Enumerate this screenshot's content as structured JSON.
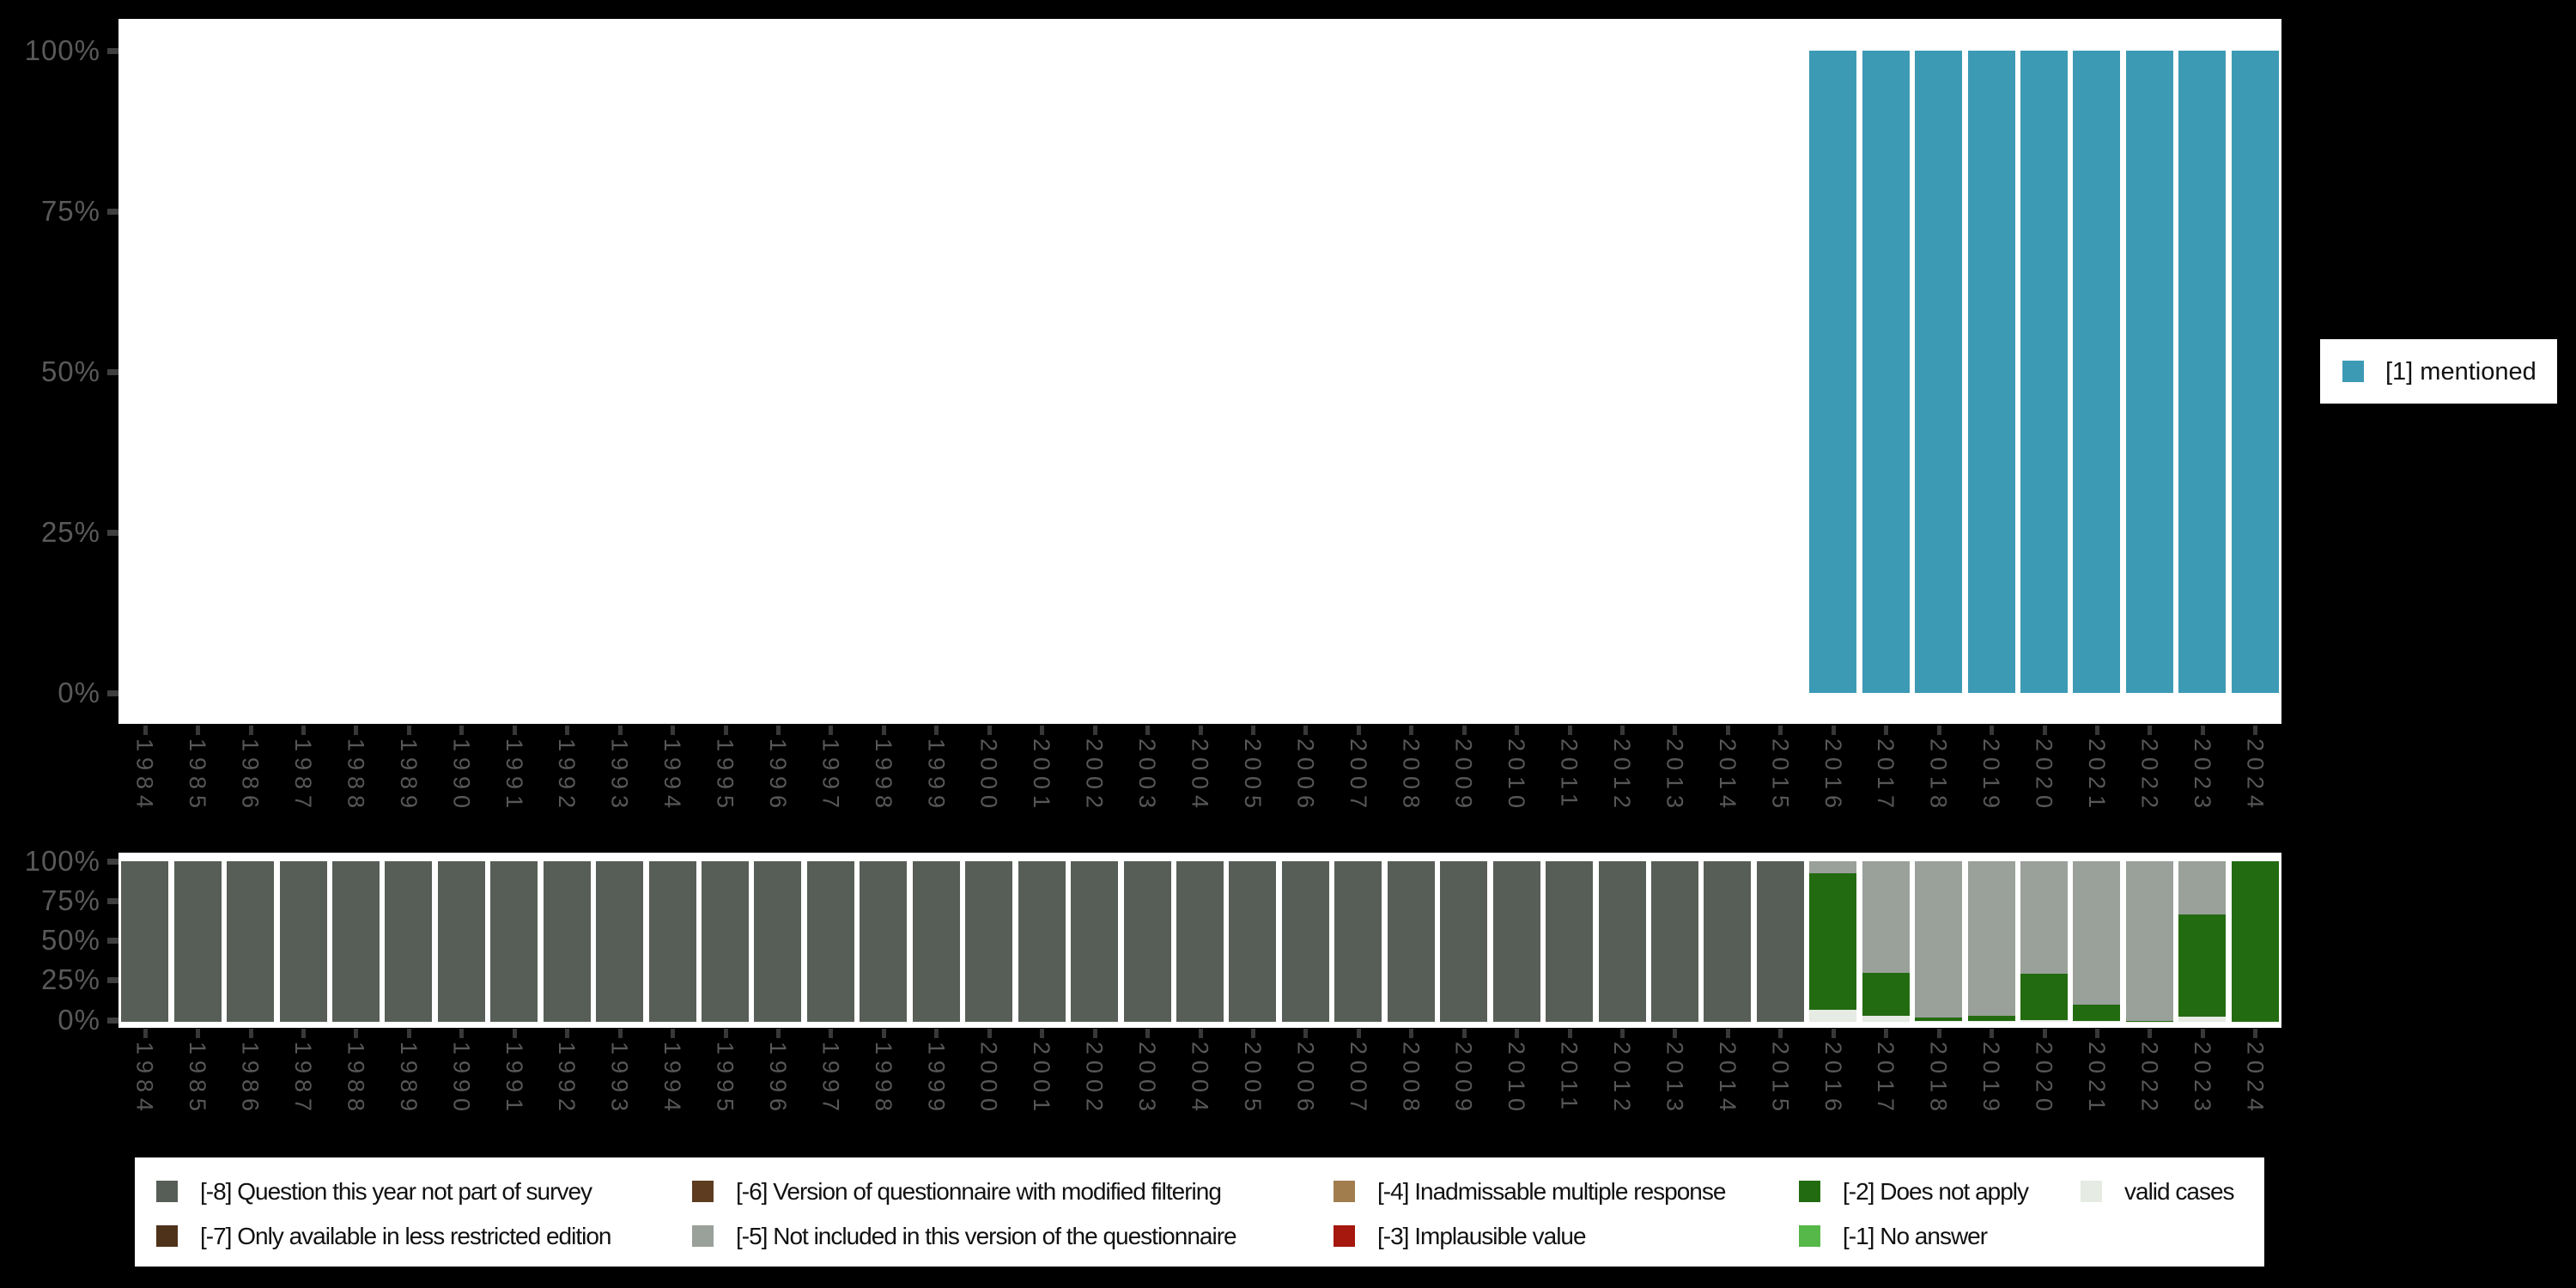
{
  "colors": {
    "background": "#000000",
    "plot_bg": "#ffffff",
    "y_axis_text": "#595959",
    "x_axis_text": "#575757",
    "tick_mark": "#3f3f3f",
    "legend_text": "#111111",
    "mentioned": "#3d9ab5",
    "m8": "#575e57",
    "m7": "#4f321a",
    "m6": "#5e3c20",
    "m5": "#9aa09a",
    "m4": "#a17d4e",
    "m3": "#a6170e",
    "m2": "#236b11",
    "m1": "#56b848",
    "valid": "#e6ebe3"
  },
  "y_axis_ticks": [
    "100%",
    "75%",
    "50%",
    "25%",
    "0%"
  ],
  "top_chart": {
    "legend_label": "[1] mentioned"
  },
  "bottom_legend": {
    "items": [
      {
        "key": "m8",
        "label": "[-8] Question this year not part of survey",
        "col": 0,
        "row": 0
      },
      {
        "key": "m7",
        "label": "[-7] Only available in less restricted edition",
        "col": 0,
        "row": 1
      },
      {
        "key": "m6",
        "label": "[-6] Version of questionnaire with modified filtering",
        "col": 1,
        "row": 0
      },
      {
        "key": "m5",
        "label": "[-5] Not included in this version of the questionnaire",
        "col": 1,
        "row": 1
      },
      {
        "key": "m4",
        "label": "[-4] Inadmissable multiple response",
        "col": 2,
        "row": 0
      },
      {
        "key": "m3",
        "label": "[-3] Implausible value",
        "col": 2,
        "row": 1
      },
      {
        "key": "m2",
        "label": "[-2] Does not apply",
        "col": 3,
        "row": 0
      },
      {
        "key": "m1",
        "label": "[-1] No answer",
        "col": 3,
        "row": 1
      },
      {
        "key": "valid",
        "label": "valid cases",
        "col": 4,
        "row": 0
      }
    ]
  },
  "chart_data": [
    {
      "type": "bar",
      "title": "",
      "xlabel": "",
      "ylabel": "",
      "ylim": [
        0,
        100
      ],
      "grid": false,
      "legend_position": "right",
      "categories": [
        "1984",
        "1985",
        "1986",
        "1987",
        "1988",
        "1989",
        "1990",
        "1991",
        "1992",
        "1993",
        "1994",
        "1995",
        "1996",
        "1997",
        "1998",
        "1999",
        "2000",
        "2001",
        "2002",
        "2003",
        "2004",
        "2005",
        "2006",
        "2007",
        "2008",
        "2009",
        "2010",
        "2011",
        "2012",
        "2013",
        "2014",
        "2015",
        "2016",
        "2017",
        "2018",
        "2019",
        "2020",
        "2021",
        "2022",
        "2023",
        "2024"
      ],
      "series": [
        {
          "key": "mentioned",
          "name": "[1] mentioned",
          "values": [
            null,
            null,
            null,
            null,
            null,
            null,
            null,
            null,
            null,
            null,
            null,
            null,
            null,
            null,
            null,
            null,
            null,
            null,
            null,
            null,
            null,
            null,
            null,
            null,
            null,
            null,
            null,
            null,
            null,
            null,
            null,
            null,
            100,
            100,
            100,
            100,
            100,
            100,
            100,
            100,
            100
          ]
        }
      ]
    },
    {
      "type": "bar",
      "stacked": true,
      "title": "",
      "xlabel": "",
      "ylabel": "",
      "ylim": [
        0,
        100
      ],
      "grid": false,
      "legend_position": "bottom",
      "categories": [
        "1984",
        "1985",
        "1986",
        "1987",
        "1988",
        "1989",
        "1990",
        "1991",
        "1992",
        "1993",
        "1994",
        "1995",
        "1996",
        "1997",
        "1998",
        "1999",
        "2000",
        "2001",
        "2002",
        "2003",
        "2004",
        "2005",
        "2006",
        "2007",
        "2008",
        "2009",
        "2010",
        "2011",
        "2012",
        "2013",
        "2014",
        "2015",
        "2016",
        "2017",
        "2018",
        "2019",
        "2020",
        "2021",
        "2022",
        "2023",
        "2024"
      ],
      "series": [
        {
          "key": "m8",
          "name": "[-8] Question this year not part of survey",
          "values": [
            100,
            100,
            100,
            100,
            100,
            100,
            100,
            100,
            100,
            100,
            100,
            100,
            100,
            100,
            100,
            100,
            100,
            100,
            100,
            100,
            100,
            100,
            100,
            100,
            100,
            100,
            100,
            100,
            100,
            100,
            100,
            100,
            0,
            0,
            0,
            0,
            0,
            0,
            0,
            0,
            0
          ]
        },
        {
          "key": "m7",
          "name": "[-7] Only available in less restricted edition",
          "values": [
            0,
            0,
            0,
            0,
            0,
            0,
            0,
            0,
            0,
            0,
            0,
            0,
            0,
            0,
            0,
            0,
            0,
            0,
            0,
            0,
            0,
            0,
            0,
            0,
            0,
            0,
            0,
            0,
            0,
            0,
            0,
            0,
            0,
            0,
            0,
            0,
            0,
            0,
            0,
            0,
            0
          ]
        },
        {
          "key": "m6",
          "name": "[-6] Version of questionnaire with modified filtering",
          "values": [
            0,
            0,
            0,
            0,
            0,
            0,
            0,
            0,
            0,
            0,
            0,
            0,
            0,
            0,
            0,
            0,
            0,
            0,
            0,
            0,
            0,
            0,
            0,
            0,
            0,
            0,
            0,
            0,
            0,
            0,
            0,
            0,
            0,
            0,
            0,
            0,
            0,
            0,
            0,
            0,
            0
          ]
        },
        {
          "key": "m5",
          "name": "[-5] Not included in this version of the questionnaire",
          "values": [
            0,
            0,
            0,
            0,
            0,
            0,
            0,
            0,
            0,
            0,
            0,
            0,
            0,
            0,
            0,
            0,
            0,
            0,
            0,
            0,
            0,
            0,
            0,
            0,
            0,
            0,
            0,
            0,
            0,
            0,
            0,
            0,
            7.5,
            69.5,
            97.3,
            96,
            70,
            89.4,
            99.3,
            33.3,
            0
          ]
        },
        {
          "key": "m4",
          "name": "[-4] Inadmissable multiple response",
          "values": [
            0,
            0,
            0,
            0,
            0,
            0,
            0,
            0,
            0,
            0,
            0,
            0,
            0,
            0,
            0,
            0,
            0,
            0,
            0,
            0,
            0,
            0,
            0,
            0,
            0,
            0,
            0,
            0,
            0,
            0,
            0,
            0,
            0,
            0,
            0,
            0,
            0,
            0,
            0,
            0,
            0
          ]
        },
        {
          "key": "m3",
          "name": "[-3] Implausible value",
          "values": [
            0,
            0,
            0,
            0,
            0,
            0,
            0,
            0,
            0,
            0,
            0,
            0,
            0,
            0,
            0,
            0,
            0,
            0,
            0,
            0,
            0,
            0,
            0,
            0,
            0,
            0,
            0,
            0,
            0,
            0,
            0,
            0,
            0,
            0,
            0,
            0,
            0,
            0,
            0,
            0,
            0
          ]
        },
        {
          "key": "m2",
          "name": "[-2] Does not apply",
          "values": [
            0,
            0,
            0,
            0,
            0,
            0,
            0,
            0,
            0,
            0,
            0,
            0,
            0,
            0,
            0,
            0,
            0,
            0,
            0,
            0,
            0,
            0,
            0,
            0,
            0,
            0,
            0,
            0,
            0,
            0,
            0,
            0,
            85,
            27,
            2,
            3.3,
            28.8,
            9.9,
            0.5,
            63.7,
            100
          ]
        },
        {
          "key": "m1",
          "name": "[-1] No answer",
          "values": [
            0,
            0,
            0,
            0,
            0,
            0,
            0,
            0,
            0,
            0,
            0,
            0,
            0,
            0,
            0,
            0,
            0,
            0,
            0,
            0,
            0,
            0,
            0,
            0,
            0,
            0,
            0,
            0,
            0,
            0,
            0,
            0,
            0,
            0,
            0,
            0,
            0,
            0,
            0,
            0,
            0
          ]
        },
        {
          "key": "valid",
          "name": "valid cases",
          "values": [
            0,
            0,
            0,
            0,
            0,
            0,
            0,
            0,
            0,
            0,
            0,
            0,
            0,
            0,
            0,
            0,
            0,
            0,
            0,
            0,
            0,
            0,
            0,
            0,
            0,
            0,
            0,
            0,
            0,
            0,
            0,
            0,
            7.5,
            3.5,
            0.7,
            0.7,
            1.2,
            0.7,
            0.2,
            3.0,
            0
          ]
        }
      ]
    }
  ]
}
